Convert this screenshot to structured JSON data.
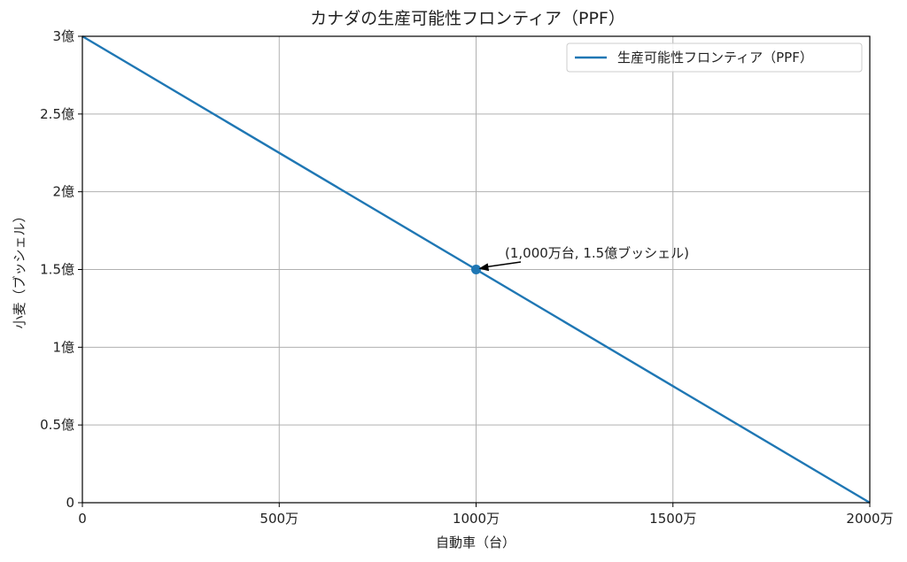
{
  "chart_data": {
    "type": "line",
    "title": "カナダの生産可能性フロンティア（PPF）",
    "xlabel": "自動車（台）",
    "ylabel": "小麦（ブッシェル）",
    "xlim": [
      0,
      20000000
    ],
    "ylim": [
      0,
      300000000
    ],
    "grid": true,
    "legend_position": "top-right",
    "x_ticks": [
      {
        "value": 0,
        "label": "0"
      },
      {
        "value": 5000000,
        "label": "500万"
      },
      {
        "value": 10000000,
        "label": "1000万"
      },
      {
        "value": 15000000,
        "label": "1500万"
      },
      {
        "value": 20000000,
        "label": "2000万"
      }
    ],
    "y_ticks": [
      {
        "value": 0,
        "label": "0"
      },
      {
        "value": 50000000,
        "label": "0.5億"
      },
      {
        "value": 100000000,
        "label": "1億"
      },
      {
        "value": 150000000,
        "label": "1.5億"
      },
      {
        "value": 200000000,
        "label": "2億"
      },
      {
        "value": 250000000,
        "label": "2.5億"
      },
      {
        "value": 300000000,
        "label": "3億"
      }
    ],
    "series": [
      {
        "name": "生産可能性フロンティア（PPF）",
        "color": "#1f77b4",
        "x": [
          0,
          20000000
        ],
        "y": [
          300000000,
          0
        ]
      }
    ],
    "highlight_point": {
      "x": 10000000,
      "y": 150000000,
      "label": "(1,000万台, 1.5億ブッシェル)",
      "color": "#1f77b4"
    }
  }
}
